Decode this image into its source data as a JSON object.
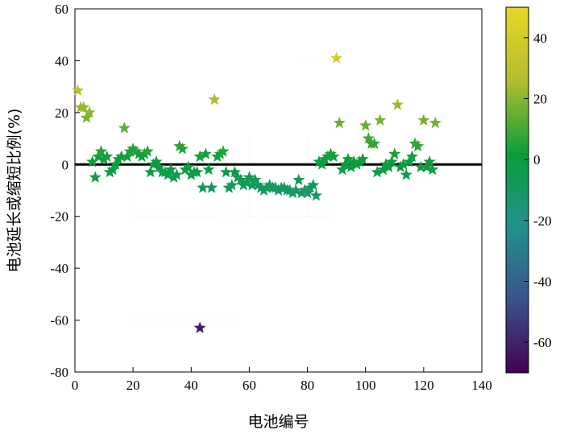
{
  "chart_data": {
    "type": "scatter",
    "xlabel": "电池编号",
    "ylabel": "电池延长或缩短比例(%)",
    "xlim": [
      0,
      140
    ],
    "ylim": [
      -80,
      60
    ],
    "xticks": [
      0,
      20,
      40,
      60,
      80,
      100,
      120,
      140
    ],
    "yticks": [
      -80,
      -60,
      -40,
      -20,
      0,
      20,
      40,
      60
    ],
    "marker": "star",
    "reference_line": {
      "y": 0,
      "color": "#000000"
    },
    "colorbar": {
      "ticks": [
        40,
        20,
        0,
        -20,
        -40,
        -60
      ],
      "range": [
        -70,
        50
      ],
      "colormap": [
        "#440154",
        "#3b528b",
        "#21918c",
        "#0a9e3a",
        "#b3be2e",
        "#e8d627"
      ]
    },
    "series": [
      {
        "x": [
          1,
          2,
          3,
          4,
          5,
          6,
          7,
          8,
          9,
          10,
          11,
          12,
          13,
          14,
          15,
          16,
          17,
          18,
          19,
          20,
          21,
          22,
          23,
          24,
          25,
          26,
          27,
          28,
          29,
          30,
          31,
          32,
          33,
          34,
          35,
          36,
          37,
          38,
          39,
          40,
          41,
          42,
          43,
          44,
          45,
          46,
          47,
          48,
          49,
          50,
          51,
          52,
          53,
          54,
          55,
          56,
          57,
          58,
          59,
          60,
          61,
          62,
          63,
          64,
          65,
          66,
          67,
          68,
          69,
          70,
          71,
          72,
          73,
          74,
          75,
          76,
          77,
          78,
          79,
          80,
          81,
          82,
          83,
          84,
          85,
          86,
          87,
          88,
          89,
          90,
          91,
          92,
          93,
          94,
          95,
          96,
          97,
          98,
          99,
          100,
          101,
          102,
          103,
          104,
          105,
          106,
          107,
          108,
          109,
          110,
          111,
          112,
          113,
          114,
          115,
          116,
          117,
          118,
          119,
          120,
          121,
          122,
          123,
          124
        ],
        "y": [
          28.5,
          22,
          22,
          18,
          20,
          1,
          -5,
          3,
          5,
          2,
          3,
          -3,
          -2,
          0,
          2,
          3,
          14,
          3,
          5,
          6,
          5,
          4,
          3,
          4,
          5,
          -3,
          0,
          1,
          -1,
          -3,
          -3,
          -4,
          -2,
          -5,
          -4,
          7,
          6,
          -2,
          -1,
          -4,
          -3,
          -3,
          3,
          -9,
          4,
          -2,
          -9,
          25,
          3,
          4,
          5,
          -3,
          -9,
          -8,
          -3,
          -5,
          -6,
          -8,
          -7,
          -5,
          -8,
          -6,
          -8,
          -9,
          -10,
          -9,
          -8,
          -9,
          -9,
          -10,
          -9,
          -9,
          -10,
          -10,
          -11,
          -10,
          -6,
          -11,
          -10,
          -11,
          -9,
          -8,
          -12,
          1,
          0,
          2,
          3,
          4,
          3,
          41,
          16,
          -2,
          0,
          2,
          -1,
          1,
          0,
          1,
          2,
          15,
          10,
          8,
          8,
          -3,
          17,
          -2,
          0,
          -1,
          1,
          4,
          23,
          -1,
          0,
          -4,
          1,
          3,
          8,
          7,
          -1,
          17,
          -1,
          1,
          -2,
          16
        ],
        "color_by": "y"
      },
      {
        "x": [
          43
        ],
        "y": [
          -63
        ],
        "color_by": "y"
      }
    ]
  }
}
